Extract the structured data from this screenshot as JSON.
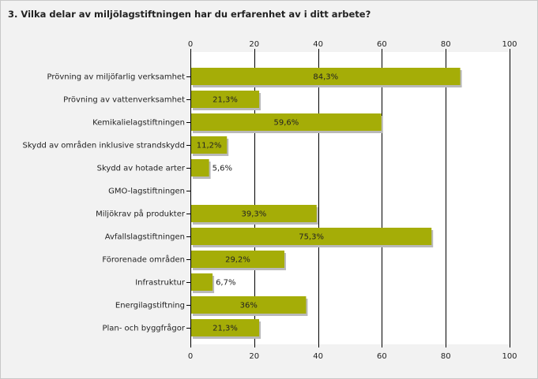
{
  "title": "3. Vilka delar av  miljölagstiftningen har du erfarenhet av i ditt arbete?",
  "colors": {
    "bar": "#a5ad07",
    "shadow": "#b9b9b9",
    "grid": "#000000"
  },
  "chart_data": {
    "type": "bar",
    "orientation": "horizontal",
    "title": "3. Vilka delar av  miljölagstiftningen har du erfarenhet av i ditt arbete?",
    "xlim": [
      0,
      100
    ],
    "ticks": [
      "0",
      "20",
      "40",
      "60",
      "80",
      "100"
    ],
    "tick_values": [
      0,
      20,
      40,
      60,
      80,
      100
    ],
    "grid": true,
    "categories": [
      "Prövning av miljöfarlig verksamhet",
      "Prövning av vattenverksamhet",
      "Kemikalielagstiftningen",
      "Skydd av områden inklusive strandskydd",
      "Skydd av hotade arter",
      "GMO-lagstiftningen",
      "Miljökrav på produkter",
      "Avfallslagstiftningen",
      "Förorenade områden",
      "Infrastruktur",
      "Energilagstiftning",
      "Plan- och byggfrågor"
    ],
    "values": [
      84.3,
      21.3,
      59.6,
      11.2,
      5.6,
      0,
      39.3,
      75.3,
      29.2,
      6.7,
      36,
      21.3
    ],
    "labels": [
      "84,3%",
      "21,3%",
      "59,6%",
      "11,2%",
      "5,6%",
      "",
      "39,3%",
      "75,3%",
      "29,2%",
      "6,7%",
      "36%",
      "21,3%"
    ]
  }
}
